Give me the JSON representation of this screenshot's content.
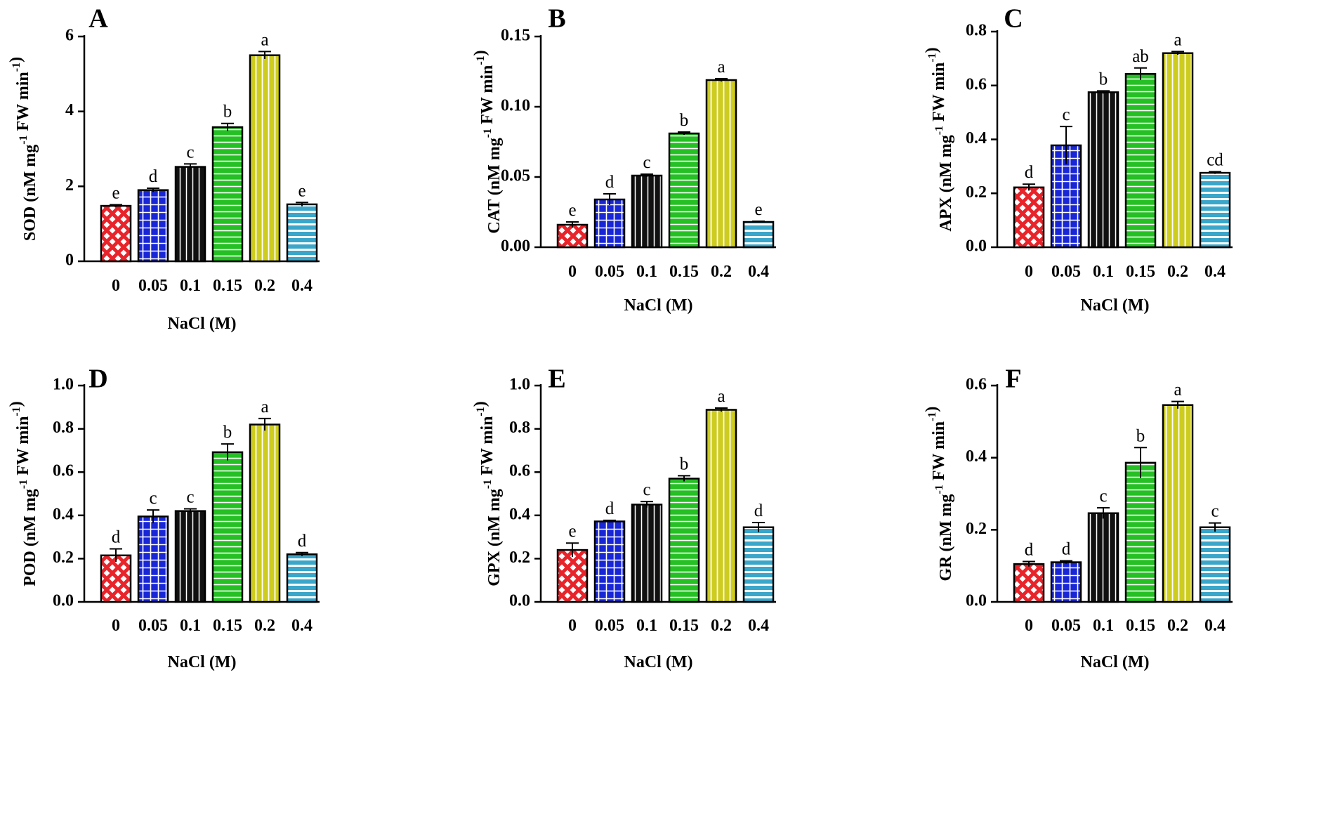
{
  "figure": {
    "categories": [
      "0",
      "0.05",
      "0.1",
      "0.15",
      "0.2",
      "0.4"
    ],
    "xlabel": "NaCl (M)",
    "bar_colors": [
      "#e8232a",
      "#1826d6",
      "#111111",
      "#25c024",
      "#cdcc1f",
      "#3aa6c9"
    ],
    "bar_patterns": [
      "diamond-lattice",
      "grid",
      "vertical-lines",
      "horizontal-lines",
      "vertical-lines",
      "horizontal-lines"
    ]
  },
  "chart_data": [
    {
      "panel": "A",
      "type": "bar",
      "ylabel_main": "SOD (nM mg",
      "ylabel_sup1": "-1",
      "ylabel_mid": " FW min",
      "ylabel_sup2": "-1",
      "ylabel_end": ")",
      "xlabel": "NaCl (M)",
      "categories": [
        "0",
        "0.05",
        "0.1",
        "0.15",
        "0.2",
        "0.4"
      ],
      "values": [
        1.48,
        1.9,
        2.52,
        3.58,
        5.5,
        1.52
      ],
      "errors": [
        0.03,
        0.05,
        0.08,
        0.1,
        0.1,
        0.05
      ],
      "letters": [
        "e",
        "d",
        "c",
        "b",
        "a",
        "e"
      ],
      "ylim": [
        0,
        6
      ],
      "yticks": [
        0,
        2,
        4,
        6
      ],
      "ytick_labels": [
        "0",
        "2",
        "4",
        "6"
      ]
    },
    {
      "panel": "B",
      "type": "bar",
      "ylabel_main": "CAT (nM mg",
      "ylabel_sup1": "-1",
      "ylabel_mid": " FW min",
      "ylabel_sup2": "-1",
      "ylabel_end": ")",
      "xlabel": "NaCl (M)",
      "categories": [
        "0",
        "0.05",
        "0.1",
        "0.15",
        "0.2",
        "0.4"
      ],
      "values": [
        0.016,
        0.034,
        0.051,
        0.081,
        0.119,
        0.018
      ],
      "errors": [
        0.002,
        0.004,
        0.001,
        0.001,
        0.001,
        0.0005
      ],
      "letters": [
        "e",
        "d",
        "c",
        "b",
        "a",
        "e"
      ],
      "ylim": [
        0,
        0.15
      ],
      "yticks": [
        0,
        0.05,
        0.1,
        0.15
      ],
      "ytick_labels": [
        "0.00",
        "0.05",
        "0.10",
        "0.15"
      ]
    },
    {
      "panel": "C",
      "type": "bar",
      "ylabel_main": "APX (nM mg",
      "ylabel_sup1": "-1",
      "ylabel_mid": " FW min",
      "ylabel_sup2": "-1",
      "ylabel_end": ")",
      "xlabel": "NaCl (M)",
      "categories": [
        "0",
        "0.05",
        "0.1",
        "0.15",
        "0.2",
        "0.4"
      ],
      "values": [
        0.222,
        0.378,
        0.575,
        0.643,
        0.72,
        0.276
      ],
      "errors": [
        0.012,
        0.07,
        0.005,
        0.022,
        0.006,
        0.004
      ],
      "letters": [
        "d",
        "c",
        "b",
        "ab",
        "a",
        "cd"
      ],
      "ylim": [
        0,
        0.8
      ],
      "yticks": [
        0,
        0.2,
        0.4,
        0.6,
        0.8
      ],
      "ytick_labels": [
        "0.0",
        "0.2",
        "0.4",
        "0.6",
        "0.8"
      ]
    },
    {
      "panel": "D",
      "type": "bar",
      "ylabel_main": "POD (nM mg",
      "ylabel_sup1": "-1",
      "ylabel_mid": " FW min",
      "ylabel_sup2": "-1",
      "ylabel_end": ")",
      "xlabel": "NaCl (M)",
      "categories": [
        "0",
        "0.05",
        "0.1",
        "0.15",
        "0.2",
        "0.4"
      ],
      "values": [
        0.215,
        0.395,
        0.42,
        0.692,
        0.82,
        0.22
      ],
      "errors": [
        0.03,
        0.03,
        0.01,
        0.038,
        0.028,
        0.008
      ],
      "letters": [
        "d",
        "c",
        "c",
        "b",
        "a",
        "d"
      ],
      "ylim": [
        0,
        1.0
      ],
      "yticks": [
        0,
        0.2,
        0.4,
        0.6,
        0.8,
        1.0
      ],
      "ytick_labels": [
        "0.0",
        "0.2",
        "0.4",
        "0.6",
        "0.8",
        "1.0"
      ]
    },
    {
      "panel": "E",
      "type": "bar",
      "ylabel_main": "GPX (nM mg",
      "ylabel_sup1": "-1",
      "ylabel_mid": " FW min",
      "ylabel_sup2": "-1",
      "ylabel_end": ")",
      "xlabel": "NaCl (M)",
      "categories": [
        "0",
        "0.05",
        "0.1",
        "0.15",
        "0.2",
        "0.4"
      ],
      "values": [
        0.24,
        0.372,
        0.45,
        0.57,
        0.888,
        0.345
      ],
      "errors": [
        0.032,
        0.005,
        0.014,
        0.013,
        0.008,
        0.022
      ],
      "letters": [
        "e",
        "d",
        "c",
        "b",
        "a",
        "d"
      ],
      "ylim": [
        0,
        1.0
      ],
      "yticks": [
        0,
        0.2,
        0.4,
        0.6,
        0.8,
        1.0
      ],
      "ytick_labels": [
        "0.0",
        "0.2",
        "0.4",
        "0.6",
        "0.8",
        "1.0"
      ]
    },
    {
      "panel": "F",
      "type": "bar",
      "ylabel_main": "GR (nM mg",
      "ylabel_sup1": "-1",
      "ylabel_mid": " FW min",
      "ylabel_sup2": "-1",
      "ylabel_end": ")",
      "xlabel": "NaCl (M)",
      "categories": [
        "0",
        "0.05",
        "0.1",
        "0.15",
        "0.2",
        "0.4"
      ],
      "values": [
        0.105,
        0.11,
        0.246,
        0.386,
        0.546,
        0.207
      ],
      "errors": [
        0.007,
        0.004,
        0.015,
        0.042,
        0.01,
        0.012
      ],
      "letters": [
        "d",
        "d",
        "c",
        "b",
        "a",
        "c"
      ],
      "ylim": [
        0,
        0.6
      ],
      "yticks": [
        0,
        0.2,
        0.4,
        0.6
      ],
      "ytick_labels": [
        "0.0",
        "0.2",
        "0.4",
        "0.6"
      ]
    }
  ]
}
